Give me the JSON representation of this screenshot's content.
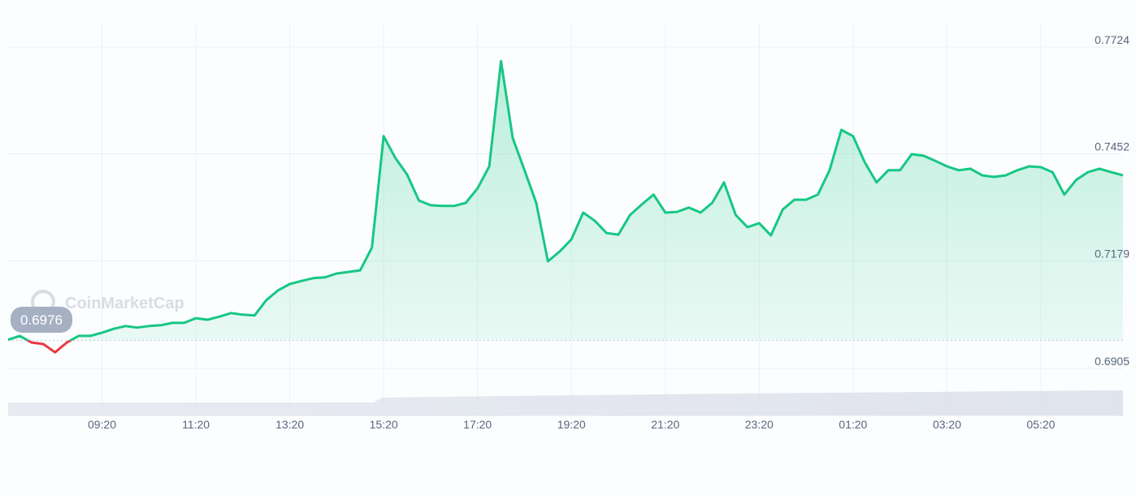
{
  "chart_data": {
    "type": "line",
    "watermark": "CoinMarketCap",
    "baseline": 0.6976,
    "color_up": "#16c784",
    "color_down": "#ea3943",
    "grid": true,
    "ylim": [
      0.6905,
      0.7724
    ],
    "yticks": [
      0.6905,
      0.7179,
      0.7452,
      0.7724
    ],
    "xticks": [
      "09:20",
      "11:20",
      "13:20",
      "15:20",
      "17:20",
      "19:20",
      "21:20",
      "23:20",
      "01:20",
      "03:20",
      "05:20"
    ],
    "x": [
      "07:20",
      "07:35",
      "07:50",
      "08:05",
      "08:20",
      "08:35",
      "08:50",
      "09:05",
      "09:20",
      "09:35",
      "09:50",
      "10:05",
      "10:20",
      "10:35",
      "10:50",
      "11:05",
      "11:20",
      "11:35",
      "11:50",
      "12:05",
      "12:20",
      "12:35",
      "12:50",
      "13:05",
      "13:20",
      "13:35",
      "13:50",
      "14:05",
      "14:20",
      "14:35",
      "14:50",
      "15:05",
      "15:20",
      "15:35",
      "15:50",
      "16:05",
      "16:20",
      "16:35",
      "16:50",
      "17:05",
      "17:20",
      "17:35",
      "17:50",
      "18:05",
      "18:20",
      "18:35",
      "18:50",
      "19:05",
      "19:20",
      "19:35",
      "19:50",
      "20:05",
      "20:20",
      "20:35",
      "20:50",
      "21:05",
      "21:20",
      "21:35",
      "21:50",
      "22:05",
      "22:20",
      "22:35",
      "22:50",
      "23:05",
      "23:20",
      "23:35",
      "23:50",
      "00:05",
      "00:20",
      "00:35",
      "00:50",
      "01:05",
      "01:20",
      "01:35",
      "01:50",
      "02:05",
      "02:20",
      "02:35",
      "02:50",
      "03:05",
      "03:20",
      "03:35",
      "03:50",
      "04:05",
      "04:20",
      "04:35",
      "04:50",
      "05:05",
      "05:20",
      "05:35",
      "05:50",
      "06:05",
      "06:20",
      "06:35",
      "06:50",
      "07:05"
    ],
    "values": [
      0.6978,
      0.6988,
      0.6971,
      0.6967,
      0.6946,
      0.6971,
      0.6988,
      0.6988,
      0.6996,
      0.7006,
      0.7013,
      0.7009,
      0.7013,
      0.7015,
      0.7021,
      0.7021,
      0.7033,
      0.7029,
      0.7037,
      0.7046,
      0.7042,
      0.704,
      0.7079,
      0.7104,
      0.712,
      0.7128,
      0.7135,
      0.7137,
      0.7147,
      0.7151,
      0.7155,
      0.7213,
      0.7497,
      0.7441,
      0.7399,
      0.7333,
      0.7321,
      0.7319,
      0.7319,
      0.7327,
      0.7364,
      0.742,
      0.7688,
      0.7492,
      0.741,
      0.7327,
      0.7178,
      0.7203,
      0.7234,
      0.7302,
      0.7281,
      0.725,
      0.7246,
      0.7296,
      0.7323,
      0.7348,
      0.7302,
      0.7304,
      0.7315,
      0.7302,
      0.7327,
      0.7379,
      0.7296,
      0.7265,
      0.7275,
      0.7244,
      0.731,
      0.7335,
      0.7335,
      0.7348,
      0.741,
      0.7513,
      0.7497,
      0.743,
      0.7379,
      0.741,
      0.741,
      0.7451,
      0.7447,
      0.7434,
      0.742,
      0.741,
      0.7414,
      0.7397,
      0.7393,
      0.7397,
      0.741,
      0.742,
      0.7418,
      0.7405,
      0.7348,
      0.7385,
      0.7405,
      0.7414,
      0.7405,
      0.7397
    ]
  }
}
